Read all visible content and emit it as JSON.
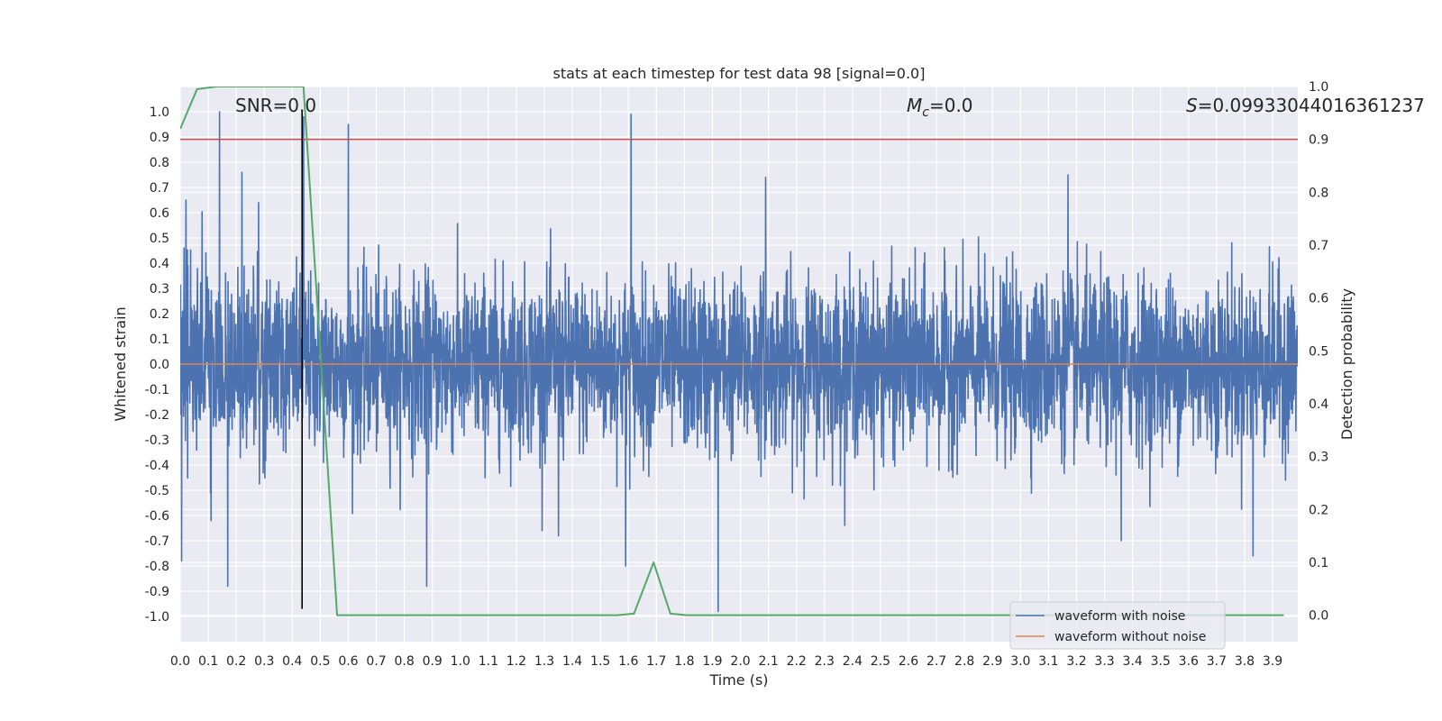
{
  "chart_data": {
    "type": "line",
    "title": "stats at each timestep for test data 98 [signal=0.0]",
    "xlabel": "Time (s)",
    "ylabel": "Whitened strain",
    "y2label": "Detection probability",
    "xlim": [
      0.0,
      3.99
    ],
    "ylim": [
      -1.1,
      1.1
    ],
    "y2lim": [
      -0.05,
      1.0
    ],
    "xticks": [
      "0.0",
      "0.1",
      "0.2",
      "0.3",
      "0.4",
      "0.5",
      "0.6",
      "0.7",
      "0.8",
      "0.9",
      "1.0",
      "1.1",
      "1.2",
      "1.3",
      "1.4",
      "1.5",
      "1.6",
      "1.7",
      "1.8",
      "1.9",
      "2.0",
      "2.1",
      "2.2",
      "2.3",
      "2.4",
      "2.5",
      "2.6",
      "2.7",
      "2.8",
      "2.9",
      "3.0",
      "3.1",
      "3.2",
      "3.3",
      "3.4",
      "3.5",
      "3.6",
      "3.7",
      "3.8",
      "3.9"
    ],
    "yticks": [
      "-1.0",
      "-0.9",
      "-0.8",
      "-0.7",
      "-0.6",
      "-0.5",
      "-0.4",
      "-0.3",
      "-0.2",
      "-0.1",
      "0.0",
      "0.1",
      "0.2",
      "0.3",
      "0.4",
      "0.5",
      "0.6",
      "0.7",
      "0.8",
      "0.9",
      "1.0"
    ],
    "y2ticks": [
      "0.0",
      "0.1",
      "0.2",
      "0.3",
      "0.4",
      "0.5",
      "0.6",
      "0.7",
      "0.8",
      "0.9",
      "1.0"
    ],
    "grid": true,
    "annotations": {
      "snr": "SNR=0.0",
      "mc_symbol": "M",
      "mc_sub": "c",
      "mc_value": "=0.0",
      "s_symbol": "S",
      "s_value": "=0.09933044016361237"
    },
    "threshold": {
      "axis": "y2",
      "value": 0.9,
      "color": "#c44e52"
    },
    "marker_time": 0.435,
    "marker_range": [
      -0.97,
      1.0
    ],
    "series": [
      {
        "name": "waveform with noise",
        "axis": "y",
        "color": "#4c72b0",
        "style": "noise",
        "spikes": [
          [
            0.005,
            -0.78
          ],
          [
            0.02,
            0.65
          ],
          [
            0.11,
            -0.62
          ],
          [
            0.14,
            1.0
          ],
          [
            0.17,
            -0.88
          ],
          [
            0.22,
            0.76
          ],
          [
            0.28,
            0.64
          ],
          [
            0.44,
            0.98
          ],
          [
            0.6,
            0.95
          ],
          [
            0.88,
            -0.88
          ],
          [
            1.35,
            -0.68
          ],
          [
            1.59,
            -0.8
          ],
          [
            1.61,
            0.99
          ],
          [
            1.92,
            -0.98
          ],
          [
            2.09,
            0.74
          ],
          [
            3.17,
            0.75
          ],
          [
            3.36,
            -0.7
          ],
          [
            3.83,
            -0.76
          ]
        ]
      },
      {
        "name": "waveform without noise",
        "axis": "y",
        "color": "#dd8452",
        "style": "flat",
        "value": 0.0
      },
      {
        "name": "detection probability",
        "axis": "y2",
        "color": "#55a868",
        "style": "line",
        "x": [
          0.0,
          0.06,
          0.13,
          0.2,
          0.3,
          0.44,
          0.56,
          0.62,
          0.8,
          1.0,
          1.2,
          1.4,
          1.56,
          1.62,
          1.69,
          1.75,
          1.81,
          2.0,
          2.5,
          3.0,
          3.5,
          3.94
        ],
        "y": [
          0.92,
          0.995,
          1.0,
          1.0,
          1.0,
          1.0,
          0.0,
          0.0,
          0.0,
          0.0,
          0.0,
          0.0,
          0.0,
          0.003,
          0.1,
          0.003,
          0.0,
          0.0,
          0.0,
          0.0,
          0.0,
          0.0
        ]
      }
    ]
  },
  "legend": {
    "entries": [
      {
        "label": "waveform with noise",
        "color": "#4c72b0"
      },
      {
        "label": "waveform without noise",
        "color": "#dd8452"
      }
    ]
  }
}
